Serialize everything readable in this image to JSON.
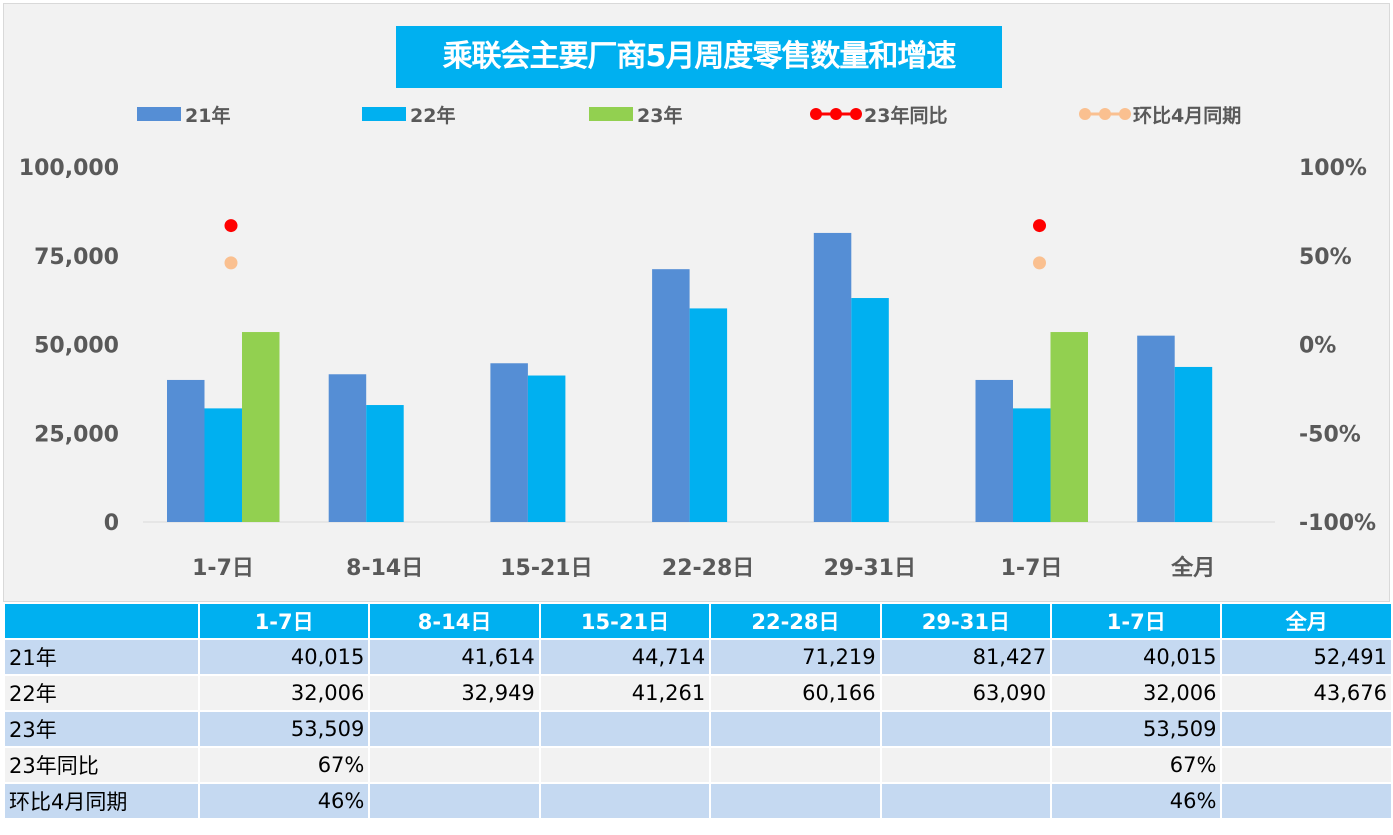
{
  "chart_data": {
    "type": "bar+scatter",
    "title": "乘联会主要厂商5月周度零售数量和增速",
    "categories": [
      "1-7日",
      "8-14日",
      "15-21日",
      "22-28日",
      "29-31日",
      "1-7日",
      "全月"
    ],
    "series": [
      {
        "name": "21年",
        "type": "bar",
        "color": "#558ed5",
        "values": [
          40015,
          41614,
          44714,
          71219,
          81427,
          40015,
          52491
        ]
      },
      {
        "name": "22年",
        "type": "bar",
        "color": "#00b0f0",
        "values": [
          32006,
          32949,
          41261,
          60166,
          63090,
          32006,
          43676
        ]
      },
      {
        "name": "23年",
        "type": "bar",
        "color": "#92d050",
        "values": [
          53509,
          null,
          null,
          null,
          null,
          53509,
          null
        ]
      },
      {
        "name": "23年同比",
        "type": "line-marker",
        "axis": "right",
        "color": "#ff0000",
        "values": [
          67,
          null,
          null,
          null,
          null,
          67,
          null
        ]
      },
      {
        "name": "环比4月同期",
        "type": "line-marker",
        "axis": "right",
        "color": "#fac090",
        "values": [
          46,
          null,
          null,
          null,
          null,
          46,
          null
        ]
      }
    ],
    "left_axis": {
      "ylim": [
        0,
        100000
      ],
      "ticks": [
        "0",
        "25,000",
        "50,000",
        "75,000",
        "100,000"
      ]
    },
    "right_axis": {
      "ylim": [
        -100,
        100
      ],
      "ticks": [
        "-100%",
        "-50%",
        "0%",
        "50%",
        "100%"
      ]
    },
    "legend": "top",
    "grid": false
  },
  "table": {
    "header": [
      "",
      "1-7日",
      "8-14日",
      "15-21日",
      "22-28日",
      "29-31日",
      "1-7日",
      "全月"
    ],
    "rows": [
      [
        "21年",
        "40,015",
        "41,614",
        "44,714",
        "71,219",
        "81,427",
        "40,015",
        "52,491"
      ],
      [
        "22年",
        "32,006",
        "32,949",
        "41,261",
        "60,166",
        "63,090",
        "32,006",
        "43,676"
      ],
      [
        "23年",
        "53,509",
        "",
        "",
        "",
        "",
        "53,509",
        ""
      ],
      [
        "23年同比",
        "67%",
        "",
        "",
        "",
        "",
        "67%",
        ""
      ],
      [
        "环比4月同期",
        "46%",
        "",
        "",
        "",
        "",
        "46%",
        ""
      ]
    ]
  }
}
